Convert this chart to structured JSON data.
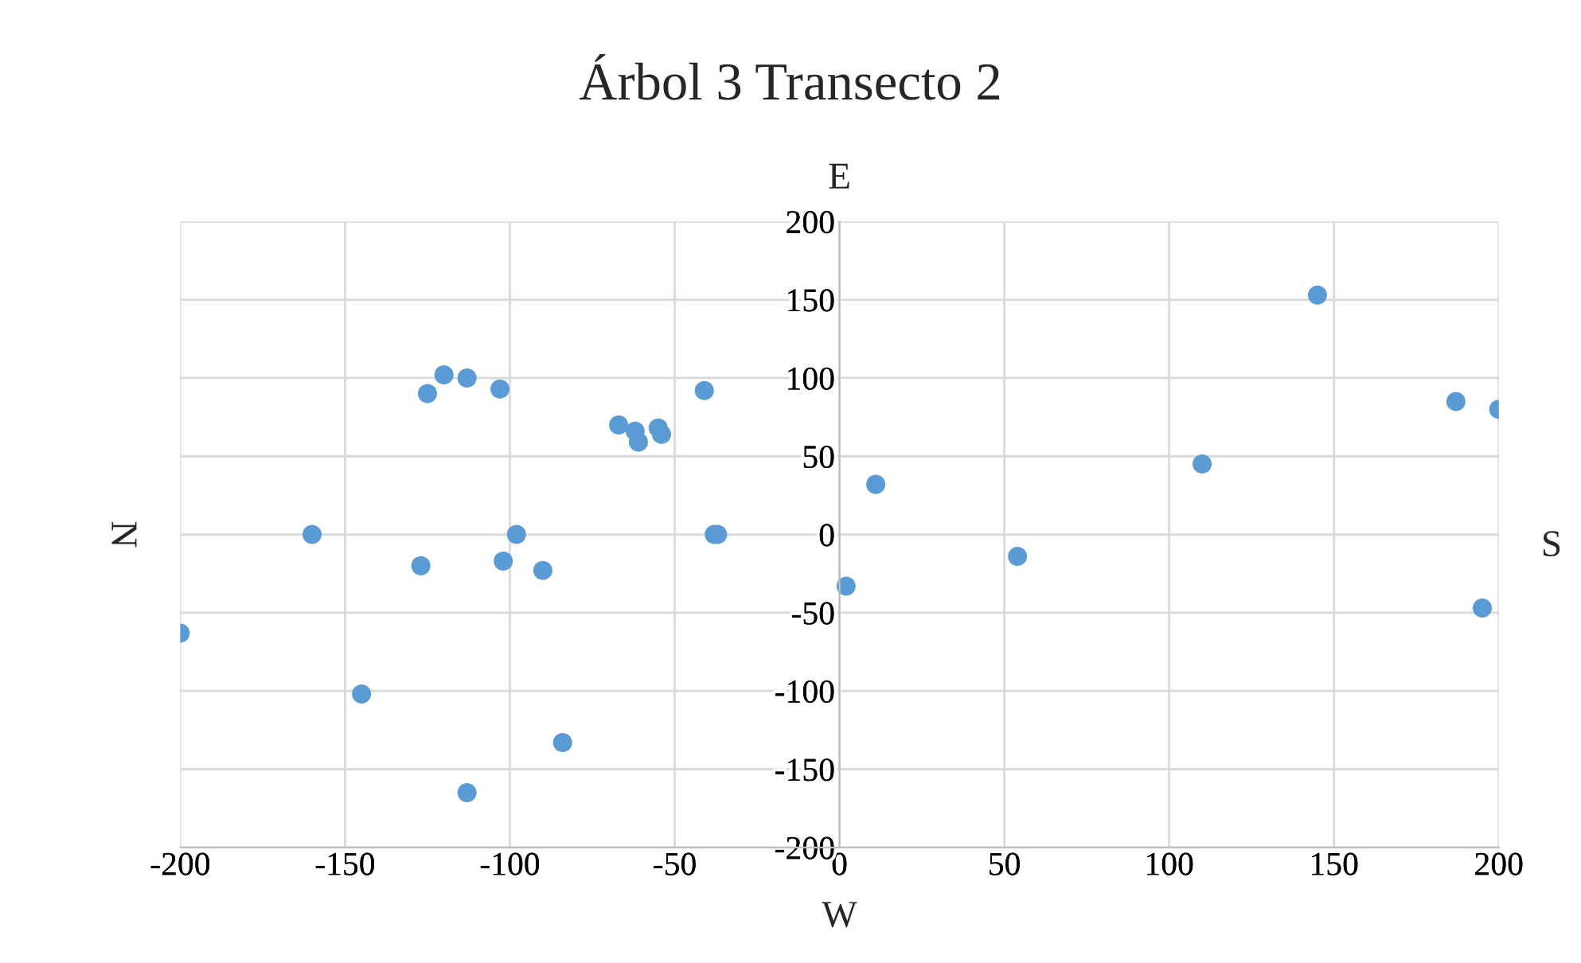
{
  "chart_data": {
    "type": "scatter",
    "title": "Árbol 3 Transecto 2",
    "x": [
      -200,
      -160,
      -145,
      -127,
      -125,
      -120,
      -113,
      -113,
      -103,
      -102,
      -98,
      -90,
      -84,
      -67,
      -62,
      -61,
      -55,
      -54,
      -41,
      -38,
      -37,
      2,
      11,
      54,
      110,
      145,
      187,
      200,
      195
    ],
    "series": [
      {
        "color": "#5b9bd5",
        "values": [
          -63,
          0,
          -102,
          -20,
          90,
          102,
          100,
          -165,
          93,
          -17,
          0,
          -23,
          -133,
          70,
          66,
          59,
          68,
          64,
          92,
          0,
          0,
          -33,
          32,
          -14,
          45,
          153,
          85,
          80,
          -47
        ]
      }
    ],
    "xlim": [
      -200,
      200
    ],
    "xticks": [
      -200,
      -150,
      -100,
      -50,
      0,
      50,
      100,
      150,
      200
    ],
    "ylim": [
      -200,
      200
    ],
    "yticks": [
      -200,
      -150,
      -100,
      -50,
      0,
      50,
      100,
      150,
      200
    ],
    "grid": true,
    "marker": "circle",
    "annotations": [
      "E",
      "W",
      "N",
      "S"
    ]
  }
}
